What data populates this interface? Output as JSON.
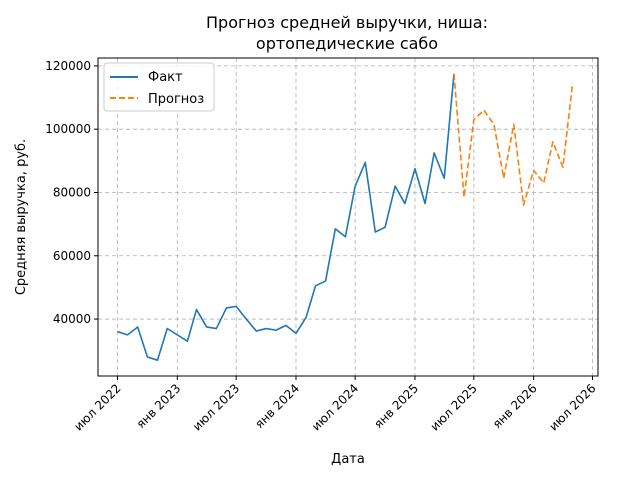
{
  "chart_data": {
    "type": "line",
    "title": [
      "Прогноз средней выручки, ниша:",
      "ортопедические сабо"
    ],
    "xlabel": "Дата",
    "ylabel": "Средняя выручка, руб.",
    "grid": true,
    "legend_placement": "top-left",
    "xlim": [
      "2022-05-02",
      "2026-07-18"
    ],
    "ylim": [
      22000,
      122500
    ],
    "x_ticks": [
      {
        "date": "2022-07-01",
        "label": "июл 2022"
      },
      {
        "date": "2023-01-01",
        "label": "янв 2023"
      },
      {
        "date": "2023-07-01",
        "label": "июл 2023"
      },
      {
        "date": "2024-01-01",
        "label": "янв 2024"
      },
      {
        "date": "2024-07-01",
        "label": "июл 2024"
      },
      {
        "date": "2025-01-01",
        "label": "янв 2025"
      },
      {
        "date": "2025-07-01",
        "label": "июл 2025"
      },
      {
        "date": "2026-01-01",
        "label": "янв 2026"
      },
      {
        "date": "2026-07-01",
        "label": "июл 2026"
      }
    ],
    "y_ticks": [
      {
        "value": 40000,
        "label": "40000"
      },
      {
        "value": 60000,
        "label": "60000"
      },
      {
        "value": 80000,
        "label": "80000"
      },
      {
        "value": 100000,
        "label": "100000"
      },
      {
        "value": 120000,
        "label": "120000"
      }
    ],
    "series": [
      {
        "name": "Факт",
        "color": "#1f77b4",
        "style": "solid",
        "x": [
          "2022-07-01",
          "2022-08-01",
          "2022-09-01",
          "2022-10-01",
          "2022-11-01",
          "2022-12-01",
          "2023-01-01",
          "2023-02-01",
          "2023-03-01",
          "2023-04-01",
          "2023-05-01",
          "2023-06-01",
          "2023-07-01",
          "2023-08-01",
          "2023-09-01",
          "2023-10-01",
          "2023-11-01",
          "2023-12-01",
          "2024-01-01",
          "2024-02-01",
          "2024-03-01",
          "2024-04-01",
          "2024-05-01",
          "2024-06-01",
          "2024-07-01",
          "2024-08-01",
          "2024-09-01",
          "2024-10-01",
          "2024-11-01",
          "2024-12-01",
          "2025-01-01",
          "2025-02-01",
          "2025-03-01",
          "2025-04-01",
          "2025-05-01"
        ],
        "values": [
          36000,
          35000,
          37500,
          28000,
          27000,
          37000,
          35000,
          33000,
          43000,
          37500,
          37000,
          43500,
          44000,
          40000,
          36200,
          37000,
          36500,
          38000,
          35500,
          40500,
          50500,
          52000,
          68500,
          66000,
          82000,
          89500,
          67500,
          69000,
          82000,
          76500,
          87500,
          76500,
          92500,
          84500,
          117500
        ]
      },
      {
        "name": "Прогноз",
        "color": "#ff7f0e",
        "style": "dashed",
        "x": [
          "2025-05-01",
          "2025-06-01",
          "2025-07-01",
          "2025-08-01",
          "2025-09-01",
          "2025-10-01",
          "2025-11-01",
          "2025-12-01",
          "2026-01-01",
          "2026-02-01",
          "2026-03-01",
          "2026-04-01",
          "2026-05-01"
        ],
        "values": [
          117500,
          78500,
          103000,
          106000,
          101500,
          84500,
          101500,
          76000,
          87000,
          83000,
          96000,
          88000,
          114500
        ]
      }
    ]
  }
}
